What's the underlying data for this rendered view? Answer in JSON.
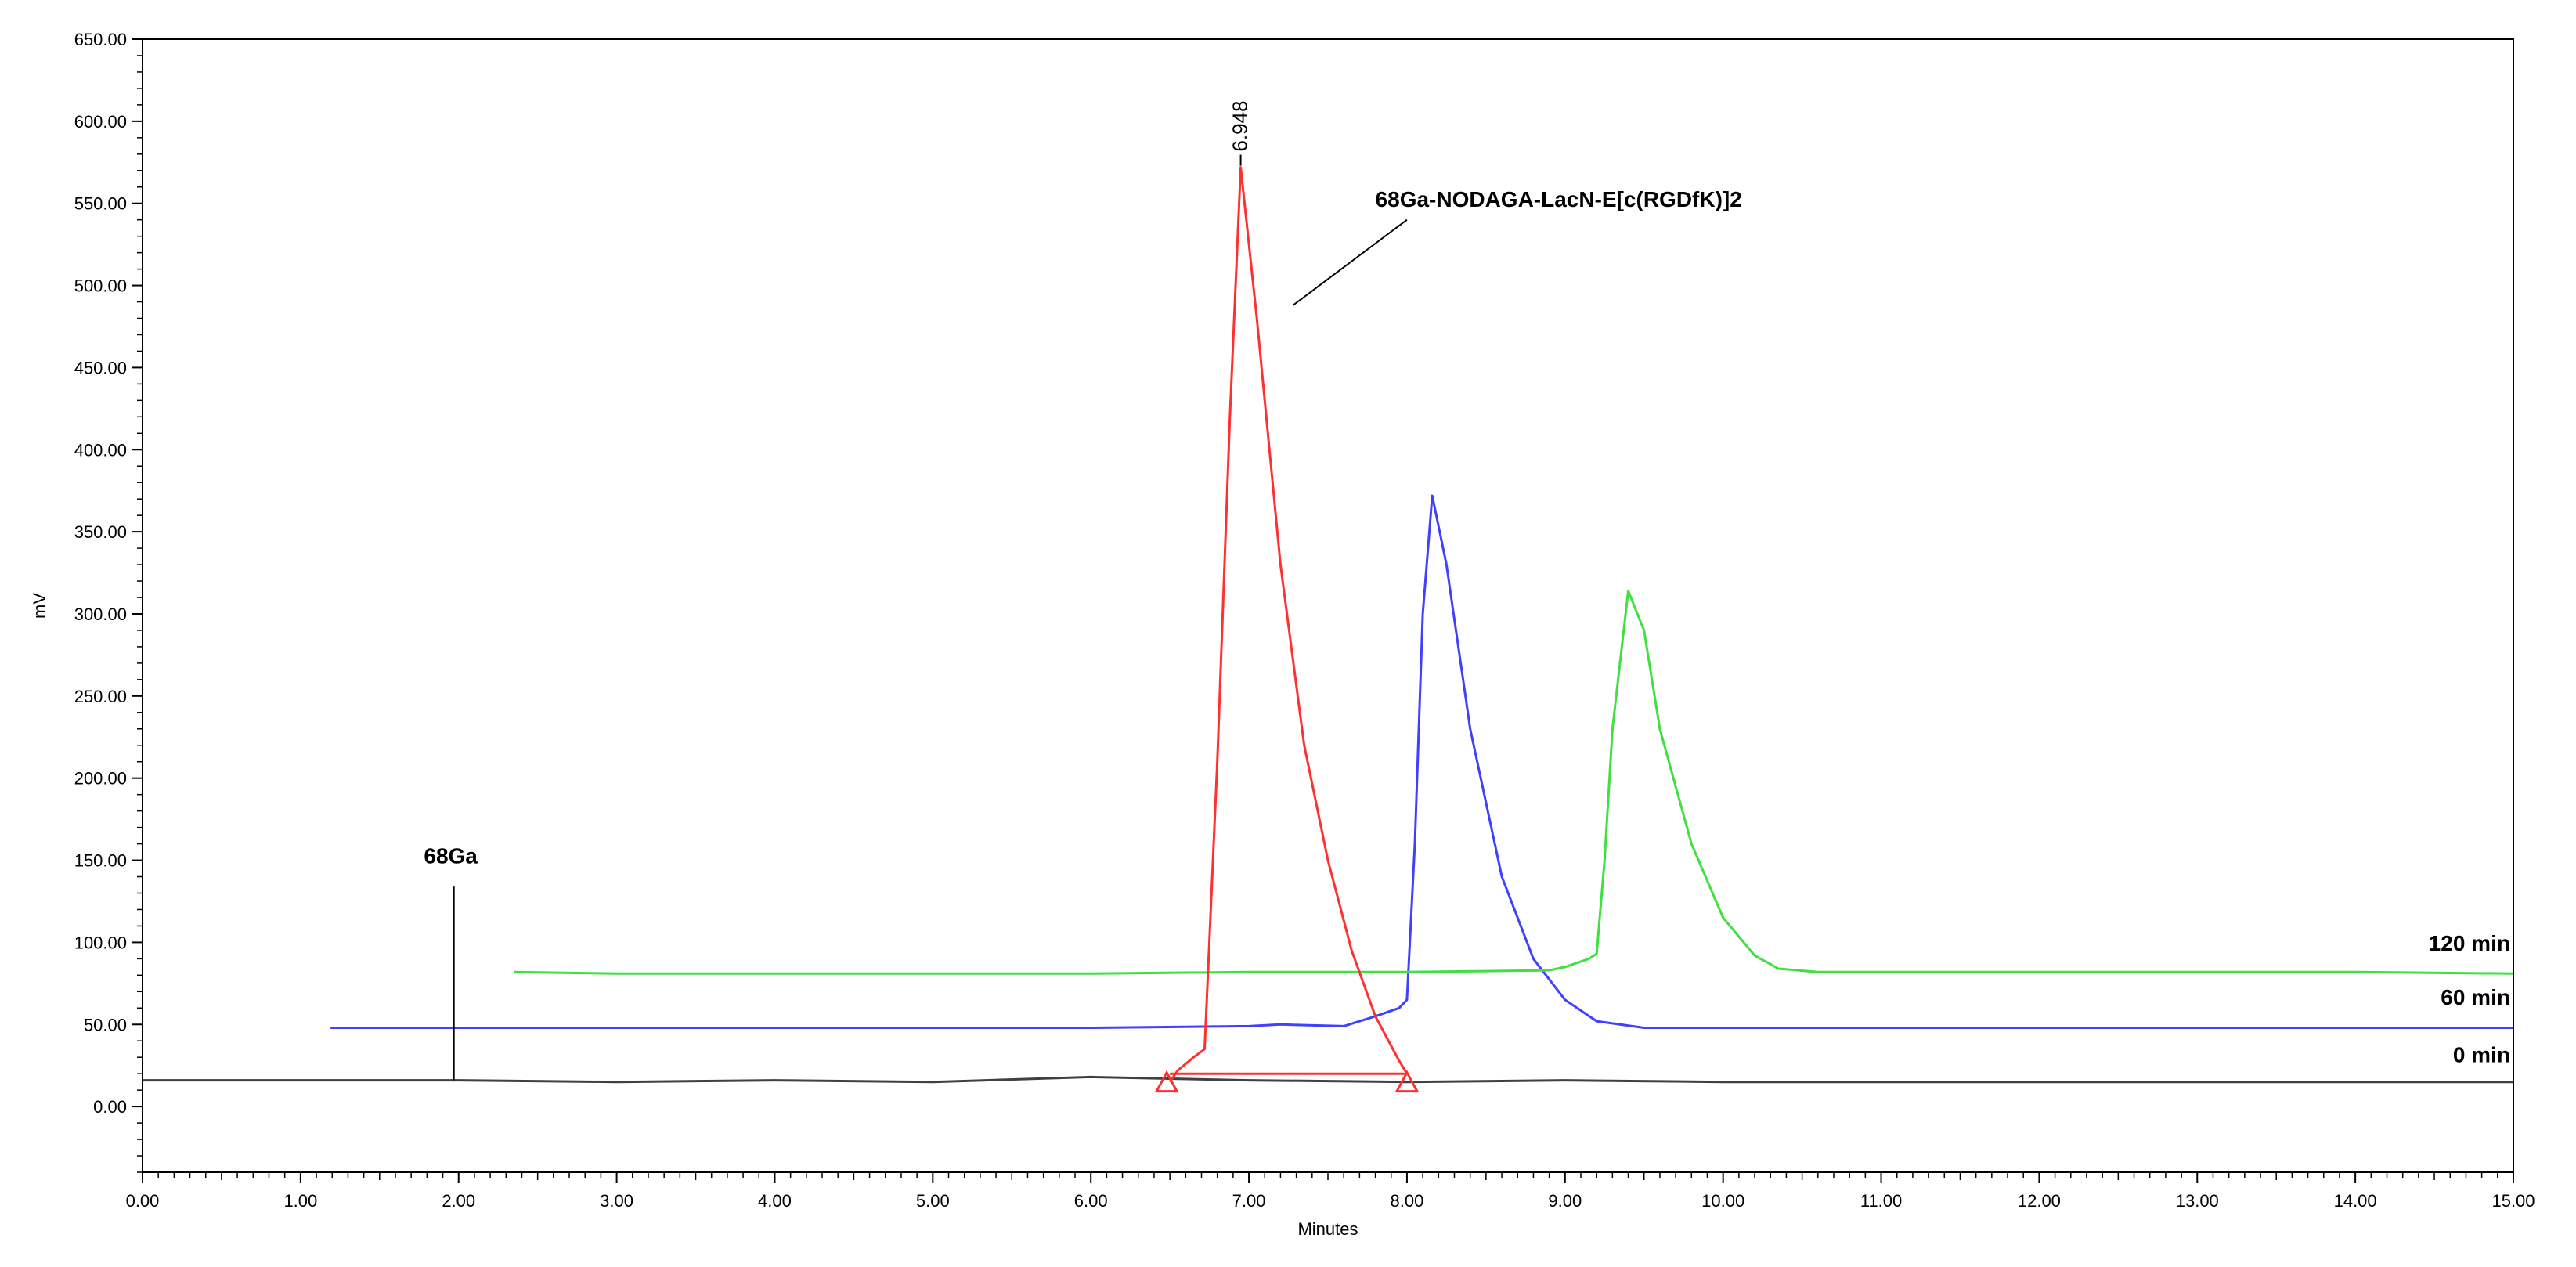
{
  "chart_data": {
    "type": "line",
    "xlabel": "Minutes",
    "ylabel": "mV",
    "xlim": [
      0,
      15
    ],
    "ylim": [
      -40,
      650
    ],
    "x_major_step": 1,
    "y_major_step": 50,
    "x_tick_decimals": 2,
    "y_tick_decimals": 2,
    "grid": false,
    "series": [
      {
        "name": "0 min",
        "color": "#404040",
        "points": [
          [
            0,
            16
          ],
          [
            1,
            16
          ],
          [
            2,
            16
          ],
          [
            3,
            15
          ],
          [
            4,
            16
          ],
          [
            5,
            15
          ],
          [
            6,
            18
          ],
          [
            6.5,
            17
          ],
          [
            7,
            16
          ],
          [
            8,
            15
          ],
          [
            9,
            16
          ],
          [
            10,
            15
          ],
          [
            11,
            15
          ],
          [
            12,
            15
          ],
          [
            13,
            15
          ],
          [
            14,
            15
          ],
          [
            15,
            15
          ]
        ]
      },
      {
        "name": "60 min",
        "color": "#4040ff",
        "points": [
          [
            1.19,
            48
          ],
          [
            2,
            48
          ],
          [
            3,
            48
          ],
          [
            4,
            48
          ],
          [
            5,
            48
          ],
          [
            6,
            48
          ],
          [
            7,
            49
          ],
          [
            7.2,
            50
          ],
          [
            7.6,
            49
          ],
          [
            7.8,
            55
          ],
          [
            7.95,
            60
          ],
          [
            8,
            65
          ],
          [
            8.05,
            160
          ],
          [
            8.1,
            300
          ],
          [
            8.16,
            372
          ],
          [
            8.25,
            330
          ],
          [
            8.4,
            230
          ],
          [
            8.6,
            140
          ],
          [
            8.8,
            90
          ],
          [
            9.0,
            65
          ],
          [
            9.2,
            52
          ],
          [
            9.5,
            48
          ],
          [
            10,
            48
          ],
          [
            11,
            48
          ],
          [
            12,
            48
          ],
          [
            13,
            48
          ],
          [
            14,
            48
          ],
          [
            15,
            48
          ]
        ]
      },
      {
        "name": "120 min",
        "color": "#40e040",
        "points": [
          [
            2.35,
            82
          ],
          [
            3,
            81
          ],
          [
            4,
            81
          ],
          [
            5,
            81
          ],
          [
            6,
            81
          ],
          [
            7,
            82
          ],
          [
            8,
            82
          ],
          [
            8.9,
            83
          ],
          [
            9.0,
            85
          ],
          [
            9.15,
            90
          ],
          [
            9.2,
            93
          ],
          [
            9.25,
            150
          ],
          [
            9.3,
            230
          ],
          [
            9.4,
            314
          ],
          [
            9.5,
            290
          ],
          [
            9.6,
            230
          ],
          [
            9.8,
            160
          ],
          [
            10.0,
            115
          ],
          [
            10.2,
            92
          ],
          [
            10.35,
            84
          ],
          [
            10.6,
            82
          ],
          [
            11,
            82
          ],
          [
            12,
            82
          ],
          [
            13,
            82
          ],
          [
            14,
            82
          ],
          [
            15,
            81
          ]
        ]
      },
      {
        "name": "",
        "color": "#ff3030",
        "points": [
          [
            6.5,
            15
          ],
          [
            6.55,
            22
          ],
          [
            6.65,
            30
          ],
          [
            6.72,
            35
          ],
          [
            6.8,
            210
          ],
          [
            6.88,
            420
          ],
          [
            6.948,
            572
          ],
          [
            7.05,
            480
          ],
          [
            7.2,
            330
          ],
          [
            7.35,
            220
          ],
          [
            7.5,
            150
          ],
          [
            7.65,
            95
          ],
          [
            7.8,
            55
          ],
          [
            7.95,
            28
          ],
          [
            8.0,
            20
          ],
          [
            6.5,
            20
          ]
        ]
      }
    ],
    "peak_label": {
      "x": 6.948,
      "y": 572,
      "text": "6.948"
    },
    "baseline_markers": [
      [
        6.48,
        15
      ],
      [
        8.0,
        15
      ]
    ],
    "annotations": [
      {
        "text": "68Ga-NODAGA-LacN-E[c(RGDfK)]2",
        "x": 7.8,
        "y": 548,
        "pointer": [
          [
            8.0,
            540
          ],
          [
            7.28,
            488
          ]
        ]
      },
      {
        "text": "68Ga",
        "x": 1.95,
        "y": 148,
        "pointer": [
          [
            1.97,
            134
          ],
          [
            1.97,
            16
          ]
        ]
      },
      {
        "text": "120 min",
        "x": 14.98,
        "y": 95
      },
      {
        "text": "60 min",
        "x": 14.98,
        "y": 62
      },
      {
        "text": "0 min",
        "x": 14.98,
        "y": 27
      }
    ]
  }
}
